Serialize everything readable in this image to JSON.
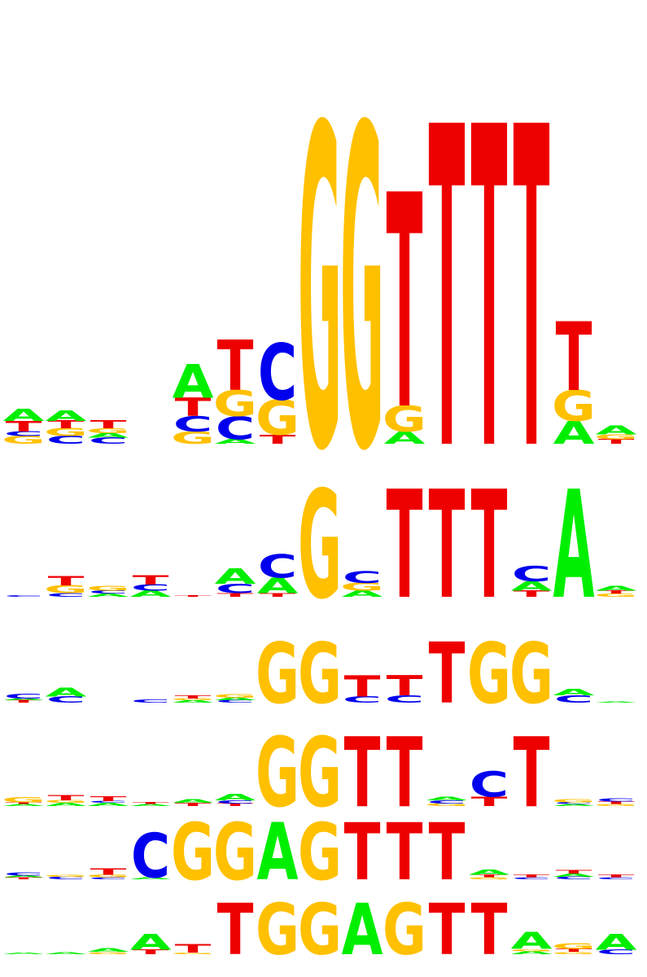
{
  "colors": {
    "A": "#00ee00",
    "C": "#0000ee",
    "G": "#ffc000",
    "T": "#ee0000"
  },
  "logos": [
    {
      "name": "motif-logo-1",
      "columns": [
        [
          "G0.05",
          "C0.03",
          "T0.07",
          "A0.08"
        ],
        [
          "C0.05",
          "G0.05",
          "T0.05",
          "A0.07"
        ],
        [
          "C0.04",
          "A0.03",
          "G0.03",
          "T0.05"
        ],
        [],
        [
          "G0.08",
          "C0.10",
          "T0.12",
          "A0.22"
        ],
        [
          "A0.03",
          "C0.15",
          "G0.17",
          "T0.33"
        ],
        [
          "T0.06",
          "G0.23",
          "C0.37"
        ],
        [
          "G2.1"
        ],
        [
          "G2.1"
        ],
        [
          "A0.08",
          "G0.17",
          "T1.40"
        ],
        [
          "T2.1"
        ],
        [
          "T2.1"
        ],
        [
          "T2.1"
        ],
        [
          "A0.15",
          "G0.20",
          "T0.45"
        ],
        [
          "T0.03",
          "G0.03",
          "A0.06"
        ],
        []
      ]
    },
    {
      "name": "motif-logo-2",
      "columns": [
        [
          "C0.02"
        ],
        [
          "C0.05",
          "G0.10",
          "T0.12"
        ],
        [
          "A0.04",
          "C0.04",
          "G0.06"
        ],
        [
          "A0.08",
          "C0.08",
          "T0.12"
        ],
        [
          "T0.02"
        ],
        [
          "T0.05",
          "C0.12",
          "A0.20"
        ],
        [
          "T0.05",
          "A0.20",
          "C0.30"
        ],
        [
          "G1.40"
        ],
        [
          "A0.08",
          "G0.10",
          "C0.15"
        ],
        [
          "T1.40"
        ],
        [
          "T1.40"
        ],
        [
          "T1.40"
        ],
        [
          "T0.08",
          "A0.12",
          "C0.20"
        ],
        [
          "A1.40"
        ],
        [
          "G0.04",
          "T0.04",
          "A0.06"
        ],
        []
      ]
    },
    {
      "name": "motif-logo-3",
      "columns": [
        [
          "T0.04",
          "A0.03",
          "C0.08"
        ],
        [
          "C0.10",
          "A0.15"
        ],
        [],
        [
          "C0.05"
        ],
        [
          "A0.04",
          "G0.03",
          "T0.05"
        ],
        [
          "C0.04",
          "A0.04",
          "G0.06"
        ],
        [
          "G1.00"
        ],
        [
          "G1.00"
        ],
        [
          "C0.10",
          "T0.35"
        ],
        [
          "C0.12",
          "T0.33"
        ],
        [
          "T1.00"
        ],
        [
          "G1.00"
        ],
        [
          "G1.00"
        ],
        [
          "C0.12",
          "A0.10"
        ],
        [
          "A0.02"
        ],
        []
      ]
    },
    {
      "name": "motif-logo-4",
      "columns": [
        [
          "A0.03",
          "T0.03",
          "G0.08"
        ],
        [
          "A0.05",
          "G0.04",
          "T0.08"
        ],
        [
          "A0.05",
          "C0.03",
          "T0.07"
        ],
        [
          "A0.03",
          "T0.03"
        ],
        [
          "T0.05",
          "A0.06"
        ],
        [
          "T0.04",
          "C0.05",
          "A0.10"
        ],
        [
          "G1.10"
        ],
        [
          "G1.10"
        ],
        [
          "T1.10"
        ],
        [
          "T1.10"
        ],
        [
          "G0.04",
          "C0.05",
          "A0.06"
        ],
        [
          "T0.15",
          "C0.40"
        ],
        [
          "T1.10"
        ],
        [
          "A0.03",
          "C0.03",
          "G0.05"
        ],
        [
          "G0.03",
          "T0.04",
          "C0.05"
        ],
        []
      ]
    },
    {
      "name": "motif-logo-5",
      "columns": [
        [
          "T0.03",
          "A0.03",
          "C0.05"
        ],
        [
          "C0.04",
          "G0.03"
        ],
        [
          "C0.03",
          "G0.04",
          "T0.10"
        ],
        [
          "A0.03",
          "C0.70"
        ],
        [
          "G0.90"
        ],
        [
          "G0.90"
        ],
        [
          "A0.90"
        ],
        [
          "G0.90"
        ],
        [
          "T0.90"
        ],
        [
          "T0.90"
        ],
        [
          "T0.90"
        ],
        [
          "G0.03",
          "T0.04",
          "A0.08"
        ],
        [
          "C0.03",
          "T0.04"
        ],
        [
          "C0.04",
          "A0.05",
          "T0.06"
        ],
        [
          "C0.03",
          "T0.04"
        ],
        []
      ]
    },
    {
      "name": "motif-logo-6",
      "columns": [
        [
          "A0.03"
        ],
        [
          "A0.04"
        ],
        [
          "G0.04",
          "A0.06"
        ],
        [
          "T0.08",
          "A0.28"
        ],
        [
          "G0.03",
          "T0.15"
        ],
        [
          "T0.90"
        ],
        [
          "G0.90"
        ],
        [
          "G0.90"
        ],
        [
          "A0.90"
        ],
        [
          "G0.90"
        ],
        [
          "T0.90"
        ],
        [
          "T0.90"
        ],
        [
          "A0.05",
          "G0.04",
          "A0.30"
        ],
        [
          "G0.04",
          "T0.05",
          "G0.10"
        ],
        [
          "C0.08",
          "A0.28"
        ],
        []
      ]
    }
  ]
}
